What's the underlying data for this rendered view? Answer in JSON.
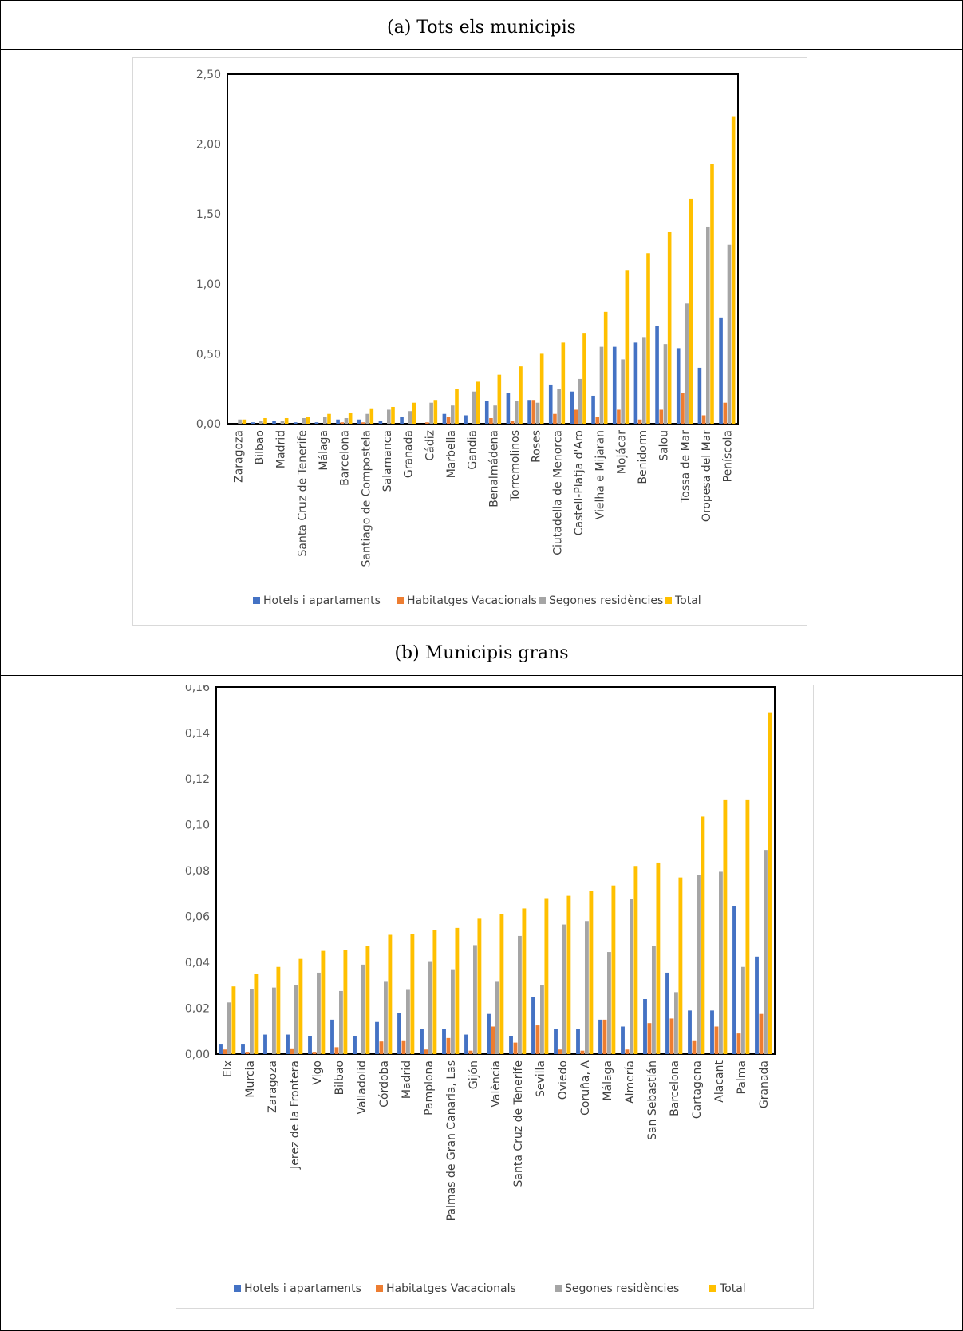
{
  "captions": {
    "a": "(a)  Tots els municipis",
    "b": "(b)  Municipis grans"
  },
  "colors": {
    "hotels": "#4472C4",
    "vacacionals": "#ED7D31",
    "segones": "#A5A5A5",
    "total": "#FFC000"
  },
  "legend": [
    "Hotels i apartaments",
    "Habitatges Vacacionals",
    "Segones residències",
    "Total"
  ],
  "chart_data": [
    {
      "type": "bar",
      "title": "",
      "ylim": [
        0,
        2.5
      ],
      "yticks": [
        "0,00",
        "0,50",
        "1,00",
        "1,50",
        "2,00",
        "2,50"
      ],
      "ytick_values": [
        0,
        0.5,
        1.0,
        1.5,
        2.0,
        2.5
      ],
      "grid": false,
      "legend_position": "bottom",
      "categories": [
        "Zaragoza",
        "Bilbao",
        "Madrid",
        "Santa Cruz de Tenerife",
        "Málaga",
        "Barcelona",
        "Santiago de Compostela",
        "Salamanca",
        "Granada",
        "Cádiz",
        "Marbella",
        "Gandia",
        "Benalmádena",
        "Torremolinos",
        "Roses",
        "Ciutadella de Menorca",
        "Castell-Platja d'Aro",
        "Vielha e Mijaran",
        "Mojácar",
        "Benidorm",
        "Salou",
        "Tossa de Mar",
        "Oropesa del Mar",
        "Peníscola"
      ],
      "series": [
        {
          "name": "Hotels i apartaments",
          "values": [
            0.0,
            0.01,
            0.02,
            0.01,
            0.01,
            0.03,
            0.03,
            0.02,
            0.05,
            0.0,
            0.07,
            0.06,
            0.16,
            0.22,
            0.17,
            0.28,
            0.23,
            0.2,
            0.55,
            0.58,
            0.7,
            0.54,
            0.4,
            0.76
          ]
        },
        {
          "name": "Habitatges Vacacionals",
          "values": [
            0.0,
            0.0,
            0.0,
            0.0,
            0.0,
            0.01,
            0.01,
            0.0,
            0.0,
            0.01,
            0.05,
            0.0,
            0.04,
            0.02,
            0.17,
            0.07,
            0.1,
            0.05,
            0.1,
            0.03,
            0.1,
            0.22,
            0.06,
            0.15
          ]
        },
        {
          "name": "Segones residències",
          "values": [
            0.03,
            0.02,
            0.02,
            0.04,
            0.05,
            0.04,
            0.07,
            0.1,
            0.09,
            0.15,
            0.13,
            0.23,
            0.13,
            0.16,
            0.15,
            0.25,
            0.32,
            0.55,
            0.46,
            0.62,
            0.57,
            0.86,
            1.41,
            1.28
          ]
        },
        {
          "name": "Total",
          "values": [
            0.03,
            0.04,
            0.04,
            0.05,
            0.07,
            0.08,
            0.11,
            0.12,
            0.15,
            0.17,
            0.25,
            0.3,
            0.35,
            0.41,
            0.5,
            0.58,
            0.65,
            0.8,
            1.1,
            1.22,
            1.37,
            1.61,
            1.86,
            2.2
          ]
        }
      ]
    },
    {
      "type": "bar",
      "title": "",
      "ylim": [
        0,
        0.16
      ],
      "yticks": [
        "0,00",
        "0,02",
        "0,04",
        "0,06",
        "0,08",
        "0,10",
        "0,12",
        "0,14",
        "0,16"
      ],
      "ytick_values": [
        0,
        0.02,
        0.04,
        0.06,
        0.08,
        0.1,
        0.12,
        0.14,
        0.16
      ],
      "grid": false,
      "legend_position": "bottom",
      "categories": [
        "Elx",
        "Murcia",
        "Zaragoza",
        "Jerez de la Frontera",
        "Vigo",
        "Bilbao",
        "Valladolid",
        "Córdoba",
        "Madrid",
        "Pamplona",
        "Palmas de Gran Canaria, Las",
        "Gijón",
        "València",
        "Santa Cruz de Tenerife",
        "Sevilla",
        "Oviedo",
        "Coruña, A",
        "Málaga",
        "Almería",
        "San Sebastián",
        "Barcelona",
        "Cartagena",
        "Alacant",
        "Palma",
        "Granada"
      ],
      "series": [
        {
          "name": "Hotels i apartaments",
          "values": [
            0.0045,
            0.0045,
            0.0085,
            0.0085,
            0.008,
            0.015,
            0.008,
            0.014,
            0.018,
            0.011,
            0.011,
            0.0085,
            0.0175,
            0.008,
            0.025,
            0.011,
            0.011,
            0.015,
            0.012,
            0.024,
            0.0355,
            0.019,
            0.019,
            0.0645,
            0.0425
          ]
        },
        {
          "name": "Habitatges Vacacionals",
          "values": [
            0.002,
            0.001,
            0.0,
            0.0025,
            0.001,
            0.003,
            0.0,
            0.0055,
            0.006,
            0.002,
            0.007,
            0.0015,
            0.012,
            0.005,
            0.0125,
            0.002,
            0.0015,
            0.015,
            0.002,
            0.0135,
            0.0155,
            0.006,
            0.012,
            0.009,
            0.0175
          ]
        },
        {
          "name": "Segones residències",
          "values": [
            0.0225,
            0.0285,
            0.029,
            0.03,
            0.0355,
            0.0275,
            0.039,
            0.0315,
            0.028,
            0.0405,
            0.037,
            0.0475,
            0.0315,
            0.0515,
            0.03,
            0.0565,
            0.058,
            0.0445,
            0.0675,
            0.047,
            0.027,
            0.078,
            0.0795,
            0.038,
            0.089
          ]
        },
        {
          "name": "Total",
          "values": [
            0.0295,
            0.035,
            0.038,
            0.0415,
            0.045,
            0.0455,
            0.047,
            0.052,
            0.0525,
            0.054,
            0.055,
            0.059,
            0.061,
            0.0635,
            0.068,
            0.069,
            0.071,
            0.0735,
            0.082,
            0.0835,
            0.077,
            0.1035,
            0.111,
            0.111,
            0.149
          ]
        }
      ]
    }
  ]
}
